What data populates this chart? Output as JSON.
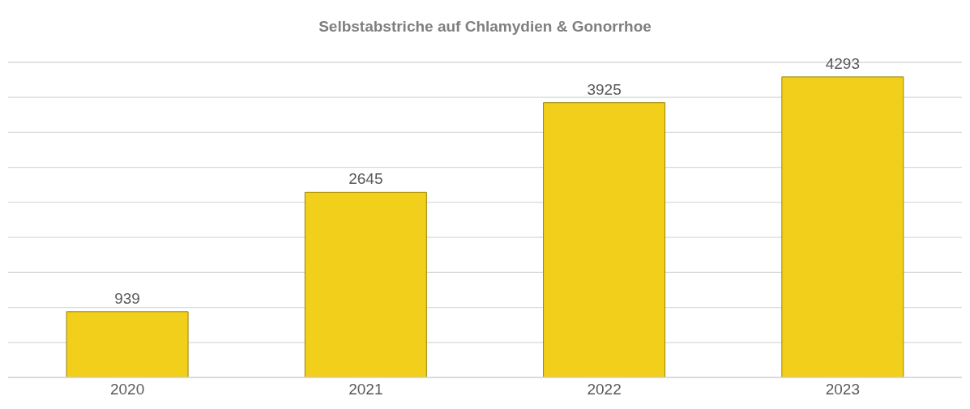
{
  "chart_data": {
    "type": "bar",
    "title": "Selbstabstriche auf Chlamydien & Gonorrhoe",
    "categories": [
      "2020",
      "2021",
      "2022",
      "2023"
    ],
    "values": [
      939,
      2645,
      3925,
      4293
    ],
    "color": "#f2cf1a",
    "ylim": [
      0,
      4500
    ],
    "yticks": [
      {
        "value": 0,
        "label": null
      },
      {
        "value": 500,
        "label": null
      },
      {
        "value": 1000,
        "label": null
      },
      {
        "value": 1500,
        "label": null
      },
      {
        "value": 2000,
        "label": null
      },
      {
        "value": 2500,
        "label": null
      },
      {
        "value": 3000,
        "label": null
      },
      {
        "value": 3500,
        "label": null
      },
      {
        "value": 4000,
        "label": null
      },
      {
        "value": 4500,
        "label": null
      }
    ],
    "grid": "y",
    "tick_labels": "x",
    "data_labels": true
  }
}
